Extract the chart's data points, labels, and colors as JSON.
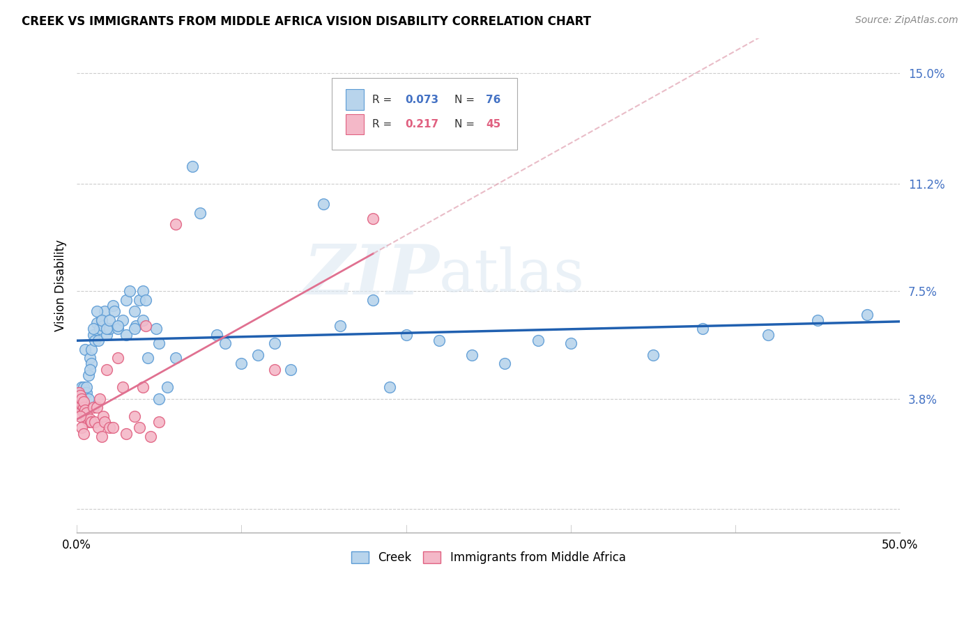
{
  "title": "CREEK VS IMMIGRANTS FROM MIDDLE AFRICA VISION DISABILITY CORRELATION CHART",
  "source": "Source: ZipAtlas.com",
  "ylabel": "Vision Disability",
  "y_ticks": [
    0.0,
    0.038,
    0.075,
    0.112,
    0.15
  ],
  "y_tick_labels": [
    "",
    "3.8%",
    "7.5%",
    "11.2%",
    "15.0%"
  ],
  "x_min": 0.0,
  "x_max": 0.5,
  "y_min": -0.008,
  "y_max": 0.162,
  "creek_color": "#b8d4ec",
  "creek_edge_color": "#5b9bd5",
  "immigrant_color": "#f4b8c8",
  "immigrant_edge_color": "#e06080",
  "creek_label": "Creek",
  "immigrant_label": "Immigrants from Middle Africa",
  "watermark_zip": "ZIP",
  "watermark_atlas": "atlas",
  "background_color": "#ffffff",
  "creek_line_color": "#2060b0",
  "immigrant_line_solid_color": "#e07090",
  "immigrant_line_dash_color": "#e0a0b0",
  "creek_points_x": [
    0.001,
    0.002,
    0.003,
    0.003,
    0.004,
    0.004,
    0.005,
    0.005,
    0.006,
    0.006,
    0.007,
    0.007,
    0.008,
    0.009,
    0.009,
    0.01,
    0.011,
    0.012,
    0.013,
    0.014,
    0.015,
    0.016,
    0.017,
    0.018,
    0.02,
    0.022,
    0.023,
    0.025,
    0.028,
    0.03,
    0.032,
    0.035,
    0.036,
    0.038,
    0.04,
    0.042,
    0.043,
    0.048,
    0.05,
    0.055,
    0.06,
    0.07,
    0.075,
    0.085,
    0.09,
    0.1,
    0.11,
    0.12,
    0.13,
    0.15,
    0.16,
    0.18,
    0.19,
    0.2,
    0.22,
    0.24,
    0.26,
    0.28,
    0.3,
    0.35,
    0.38,
    0.42,
    0.45,
    0.48,
    0.008,
    0.01,
    0.012,
    0.015,
    0.018,
    0.02,
    0.025,
    0.03,
    0.035,
    0.04,
    0.05
  ],
  "creek_points_y": [
    0.038,
    0.04,
    0.042,
    0.038,
    0.035,
    0.042,
    0.04,
    0.055,
    0.04,
    0.042,
    0.046,
    0.038,
    0.052,
    0.05,
    0.055,
    0.06,
    0.058,
    0.064,
    0.058,
    0.062,
    0.065,
    0.063,
    0.068,
    0.06,
    0.062,
    0.07,
    0.068,
    0.062,
    0.065,
    0.072,
    0.075,
    0.068,
    0.063,
    0.072,
    0.075,
    0.072,
    0.052,
    0.062,
    0.057,
    0.042,
    0.052,
    0.118,
    0.102,
    0.06,
    0.057,
    0.05,
    0.053,
    0.057,
    0.048,
    0.105,
    0.063,
    0.072,
    0.042,
    0.06,
    0.058,
    0.053,
    0.05,
    0.058,
    0.057,
    0.053,
    0.062,
    0.06,
    0.065,
    0.067,
    0.048,
    0.062,
    0.068,
    0.065,
    0.062,
    0.065,
    0.063,
    0.06,
    0.062,
    0.065,
    0.038
  ],
  "immigrant_points_x": [
    0.001,
    0.001,
    0.001,
    0.002,
    0.002,
    0.002,
    0.003,
    0.003,
    0.003,
    0.004,
    0.004,
    0.004,
    0.005,
    0.005,
    0.006,
    0.006,
    0.007,
    0.008,
    0.009,
    0.01,
    0.011,
    0.012,
    0.013,
    0.014,
    0.015,
    0.016,
    0.017,
    0.018,
    0.02,
    0.022,
    0.025,
    0.028,
    0.03,
    0.035,
    0.038,
    0.04,
    0.042,
    0.045,
    0.05,
    0.06,
    0.12,
    0.18,
    0.002,
    0.003,
    0.004
  ],
  "immigrant_points_y": [
    0.036,
    0.038,
    0.04,
    0.035,
    0.037,
    0.039,
    0.034,
    0.036,
    0.038,
    0.033,
    0.035,
    0.037,
    0.032,
    0.034,
    0.031,
    0.033,
    0.03,
    0.031,
    0.03,
    0.035,
    0.03,
    0.035,
    0.028,
    0.038,
    0.025,
    0.032,
    0.03,
    0.048,
    0.028,
    0.028,
    0.052,
    0.042,
    0.026,
    0.032,
    0.028,
    0.042,
    0.063,
    0.025,
    0.03,
    0.098,
    0.048,
    0.1,
    0.032,
    0.028,
    0.026
  ]
}
